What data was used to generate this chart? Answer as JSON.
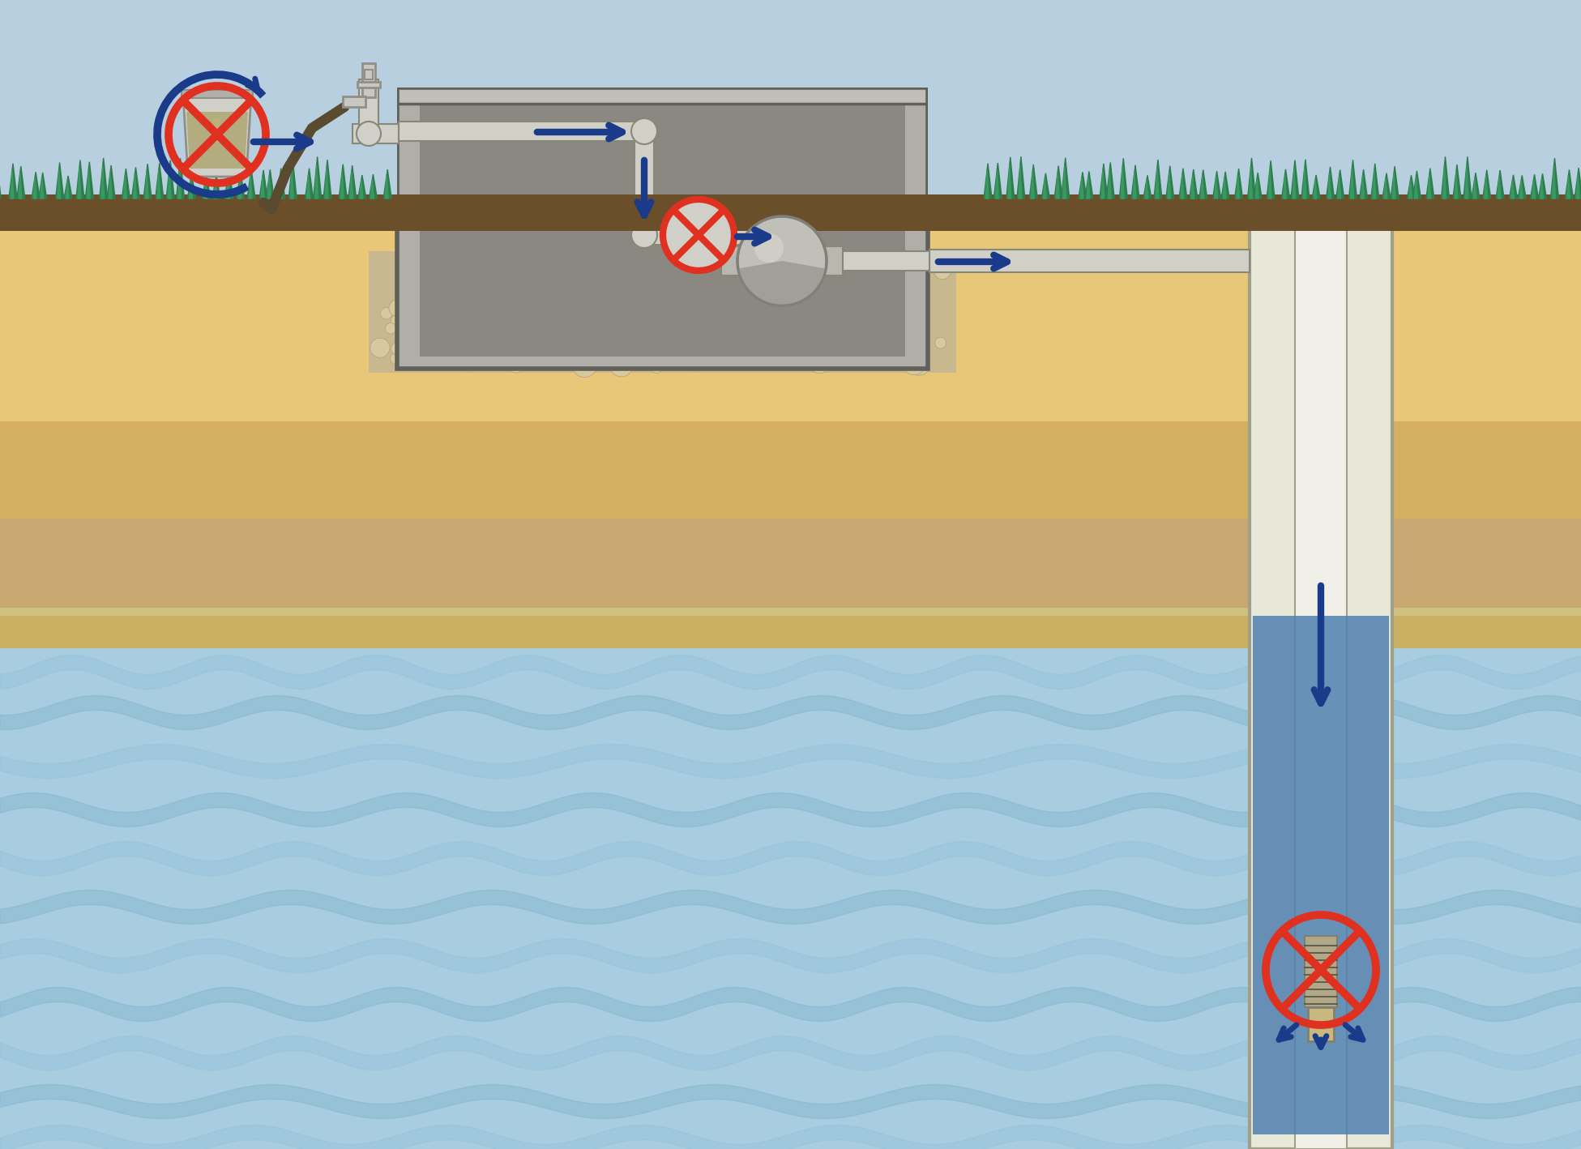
{
  "sky_color": "#b8cfe0",
  "grass_color": "#2e7d4f",
  "topsoil_color": "#6b4e2a",
  "sand_color_upper": "#e8c878",
  "sand_color_mid": "#d4b060",
  "clay_color": "#c8a870",
  "water_bg_color": "#a8cce0",
  "water_wave_color1": "#7aaec8",
  "water_wave_color2": "#90c0d8",
  "gravel_color": "#c8b890",
  "pump_house_fill": "#8a8880",
  "pump_house_wall": "#b0aea8",
  "pump_house_outline": "#606058",
  "concrete_slab": "#c0beb8",
  "pipe_color": "#d0d0c8",
  "pipe_outline": "#888878",
  "well_casing_color": "#e8e8d8",
  "well_casing_outline": "#a0a088",
  "arrow_color": "#1a3a8a",
  "forbidden_red": "#e03020",
  "pump_body_color": "#c0c0b8",
  "pump_shade_color": "#a0a098",
  "pump_outline": "#808078",
  "hose_color": "#5a4a30",
  "tap_color": "#c8c8c0",
  "tap_outline": "#909088",
  "bucket_color": "#d0d0c8",
  "bucket_outline": "#909088",
  "screen_color": "#b0a888",
  "screen_outline": "#808070",
  "well_water_color": "#5080b0"
}
